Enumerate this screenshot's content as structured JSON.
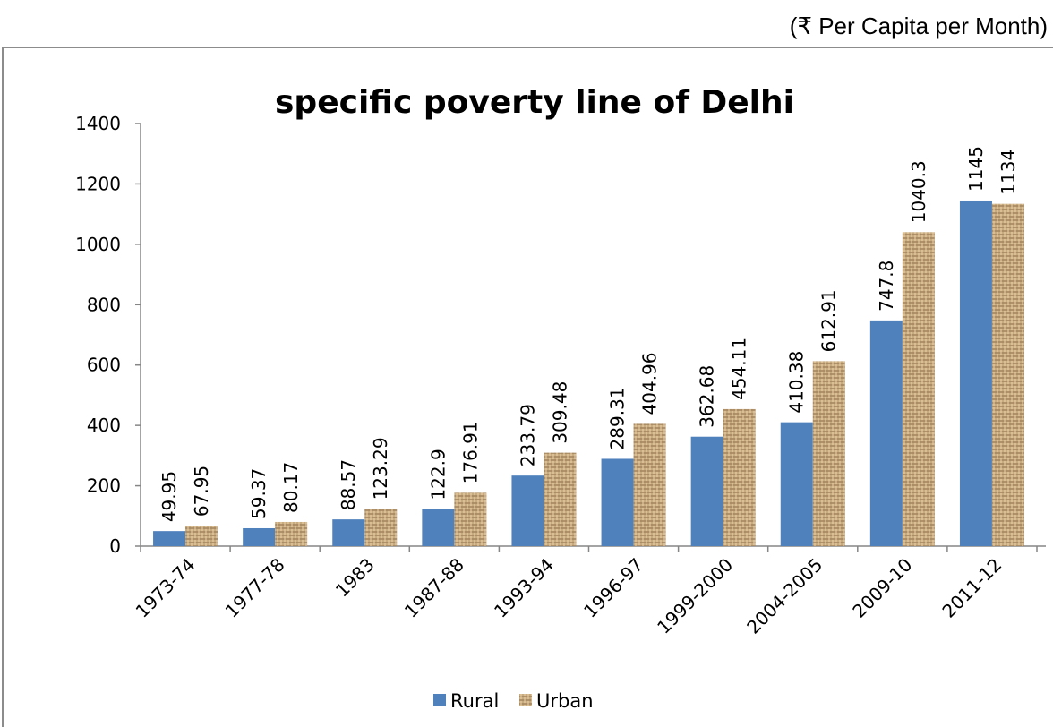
{
  "unit_note": "(₹ Per Capita per Month)",
  "chart_data": {
    "type": "bar",
    "title": "specific poverty line of Delhi",
    "xlabel": "",
    "ylabel": "",
    "ylim": [
      0,
      1400
    ],
    "yticks": [
      0,
      200,
      400,
      600,
      800,
      1000,
      1200,
      1400
    ],
    "categories": [
      "1973-74",
      "1977-78",
      "1983",
      "1987-88",
      "1993-94",
      "1996-97",
      "1999-2000",
      "2004-2005",
      "2009-10",
      "2011-12"
    ],
    "series": [
      {
        "name": "Rural",
        "color": "#4f81bd",
        "values": [
          49.95,
          59.37,
          88.57,
          122.9,
          233.79,
          289.31,
          362.68,
          410.38,
          747.8,
          1145
        ],
        "labels": [
          "49.95",
          "59.37",
          "88.57",
          "122.9",
          "233.79",
          "289.31",
          "362.68",
          "410.38",
          "747.8",
          "1145"
        ]
      },
      {
        "name": "Urban",
        "color": "#c8a978",
        "values": [
          67.95,
          80.17,
          123.29,
          176.91,
          309.48,
          404.96,
          454.11,
          612.91,
          1040.3,
          1134
        ],
        "labels": [
          "67.95",
          "80.17",
          "123.29",
          "176.91",
          "309.48",
          "404.96",
          "454.11",
          "612.91",
          "1040.3",
          "1134"
        ]
      }
    ],
    "grid": false,
    "legend_position": "bottom"
  }
}
